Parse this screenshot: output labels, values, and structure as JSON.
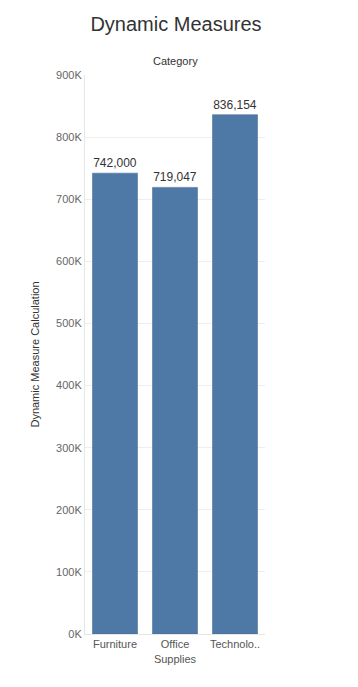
{
  "chart_data": {
    "type": "bar",
    "title": "Dynamic Measures",
    "xlabel": "Category",
    "ylabel": "Dynamic Measure Calculation",
    "categories": [
      "Furniture",
      "Office Supplies",
      "Technolo.."
    ],
    "values": [
      742000,
      719047,
      836154
    ],
    "value_labels": [
      "742,000",
      "719,047",
      "836,154"
    ],
    "data_labels": true,
    "color": "#4e79a7",
    "ylim": [
      0,
      900000
    ],
    "yticks": [
      {
        "value": 0,
        "label": "0K"
      },
      {
        "value": 100000,
        "label": "100K"
      },
      {
        "value": 200000,
        "label": "200K"
      },
      {
        "value": 300000,
        "label": "300K"
      },
      {
        "value": 400000,
        "label": "400K"
      },
      {
        "value": 500000,
        "label": "500K"
      },
      {
        "value": 600000,
        "label": "600K"
      },
      {
        "value": 700000,
        "label": "700K"
      },
      {
        "value": 800000,
        "label": "800K"
      },
      {
        "value": 900000,
        "label": "900K"
      }
    ],
    "grid": true
  }
}
